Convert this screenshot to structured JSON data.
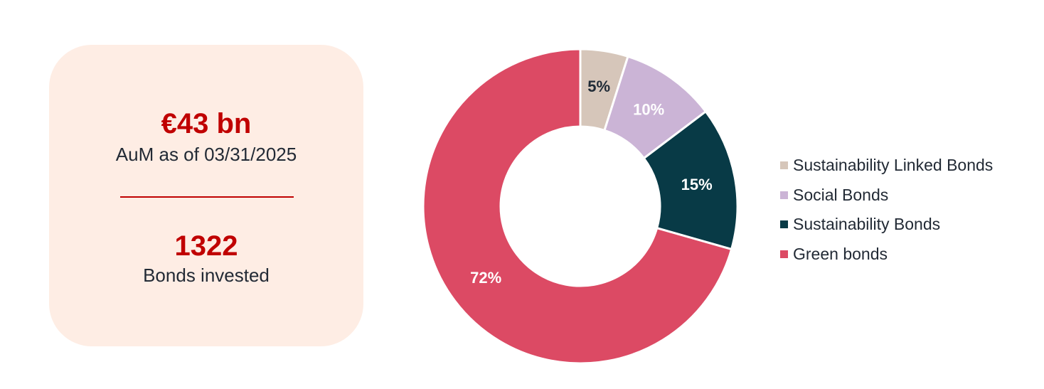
{
  "kpis": {
    "aum_value": "€43 bn",
    "aum_caption": "AuM as of 03/31/2025",
    "bonds_value": "1322",
    "bonds_caption": "Bonds invested"
  },
  "chart_data": {
    "type": "pie",
    "donut": true,
    "legend_position": "right",
    "slices": [
      {
        "name": "Sustainability Linked Bonds",
        "value": 5,
        "label": "5%",
        "color": "#d6c6ba",
        "label_color": "#1f2a36"
      },
      {
        "name": "Social Bonds",
        "value": 10,
        "label": "10%",
        "color": "#cbb4d6",
        "label_color": "#ffffff"
      },
      {
        "name": "Sustainability Bonds",
        "value": 15,
        "label": "15%",
        "color": "#083a46",
        "label_color": "#ffffff"
      },
      {
        "name": "Green bonds",
        "value": 72,
        "label": "72%",
        "color": "#dc4a64",
        "label_color": "#ffffff"
      }
    ]
  },
  "colors": {
    "accent": "#c00000",
    "card_background": "#feede4",
    "text_dark": "#222a35"
  }
}
